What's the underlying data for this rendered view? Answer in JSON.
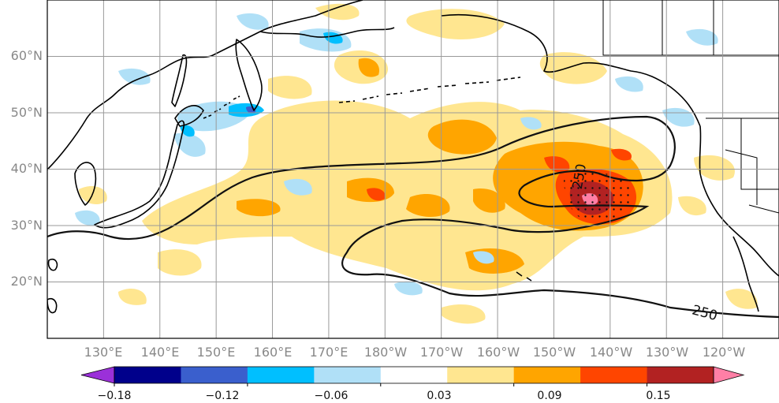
{
  "map": {
    "lat_labels": [
      "60°N",
      "50°N",
      "40°N",
      "30°N",
      "20°N"
    ],
    "lat_values": [
      60,
      50,
      40,
      30,
      20
    ],
    "lon_labels": [
      "130°E",
      "140°E",
      "150°E",
      "160°E",
      "170°E",
      "180°W",
      "170°W",
      "160°W",
      "150°W",
      "140°W",
      "130°W",
      "120°W"
    ],
    "lon_values": [
      130,
      140,
      150,
      160,
      170,
      180,
      190,
      200,
      210,
      220,
      230,
      240
    ],
    "lon_range": [
      120,
      250
    ],
    "lat_range": [
      10,
      70
    ],
    "contour_labels": [
      "250",
      "250"
    ],
    "grid": true
  },
  "colorbar": {
    "tick_labels": [
      "−0.18",
      "−0.12",
      "−0.06",
      "0.03",
      "0.09",
      "0.15"
    ],
    "colors": [
      "#9b30d9",
      "#00008b",
      "#3a5fcd",
      "#00bfff",
      "#b0e0f7",
      "#ffffff",
      "#ffe690",
      "#ffa500",
      "#ff4500",
      "#b22222",
      "#ff7fa6"
    ]
  }
}
